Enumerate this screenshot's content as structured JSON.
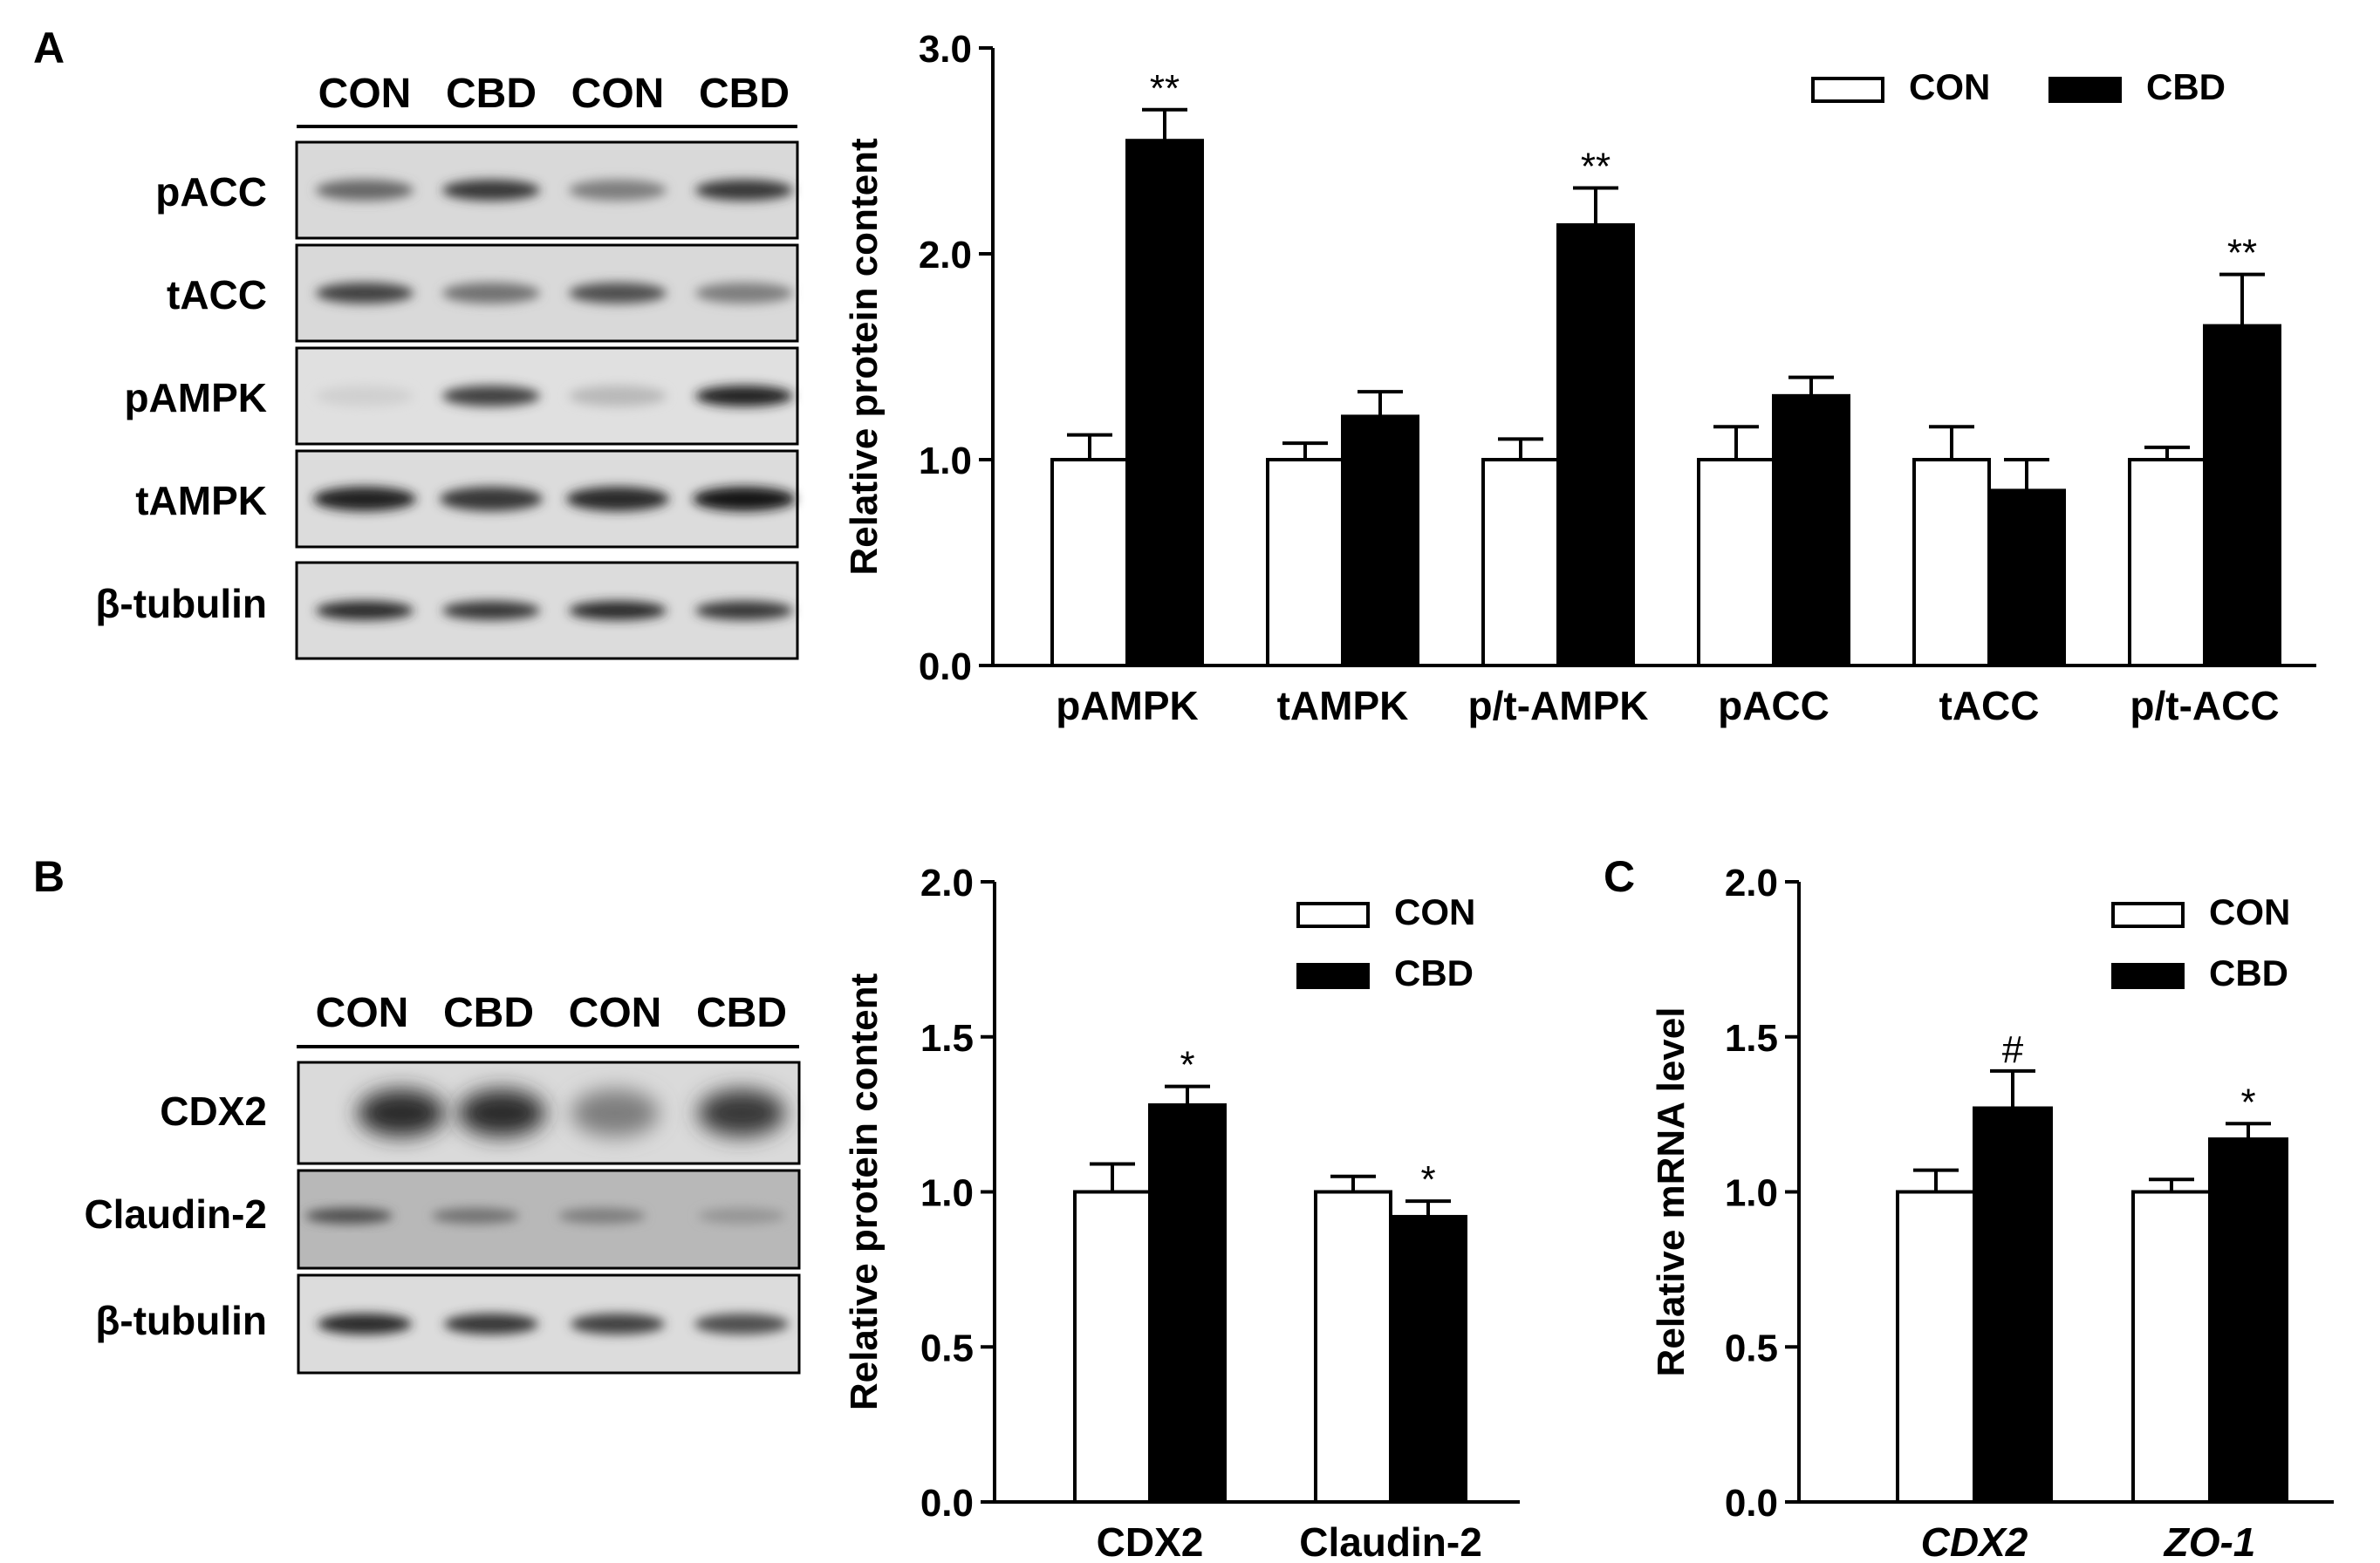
{
  "panel_labels": [
    "A",
    "B",
    "C"
  ],
  "blot_a": {
    "lanes": [
      "CON",
      "CBD",
      "CON",
      "CBD"
    ],
    "rows": [
      {
        "label": "pACC",
        "intensity": [
          0.65,
          0.85,
          0.55,
          0.85
        ]
      },
      {
        "label": "tACC",
        "intensity": [
          0.8,
          0.6,
          0.75,
          0.55
        ]
      },
      {
        "label": "pAMPK",
        "intensity": [
          0.2,
          0.8,
          0.3,
          0.95
        ]
      },
      {
        "label": "tAMPK",
        "intensity": [
          0.95,
          0.85,
          0.9,
          1.0
        ]
      },
      {
        "label": "β-tubulin",
        "intensity": [
          0.9,
          0.85,
          0.9,
          0.85
        ]
      }
    ]
  },
  "blot_b": {
    "lanes": [
      "CON",
      "CBD",
      "CON",
      "CBD"
    ],
    "rows": [
      {
        "label": "CDX2",
        "intensity": [
          0.9,
          0.9,
          0.55,
          0.85
        ]
      },
      {
        "label": "Claudin-2",
        "intensity": [
          0.75,
          0.6,
          0.55,
          0.45
        ]
      },
      {
        "label": "β-tubulin",
        "intensity": [
          0.9,
          0.85,
          0.8,
          0.75
        ]
      }
    ]
  },
  "chart_data": [
    {
      "id": "A",
      "type": "bar",
      "title": "",
      "xlabel": "",
      "ylabel": "Relative protein content",
      "ylim": [
        0,
        3.0
      ],
      "yticks": [
        "0.0",
        "1.0",
        "2.0",
        "3.0"
      ],
      "categories": [
        "pAMPK",
        "tAMPK",
        "p/t-AMPK",
        "pACC",
        "tACC",
        "p/t-ACC"
      ],
      "categories_italic": false,
      "series": [
        {
          "name": "CON",
          "color": "#ffffff",
          "values": [
            1.0,
            1.0,
            1.0,
            1.0,
            1.0,
            1.0
          ],
          "errors": [
            0.12,
            0.08,
            0.1,
            0.16,
            0.16,
            0.06
          ]
        },
        {
          "name": "CBD",
          "color": "#000000",
          "values": [
            2.55,
            1.21,
            2.14,
            1.31,
            0.85,
            1.65
          ],
          "errors": [
            0.15,
            0.12,
            0.18,
            0.09,
            0.15,
            0.25
          ]
        }
      ],
      "significance": [
        "**",
        "",
        "**",
        "",
        "",
        "**"
      ],
      "legend": "top-right"
    },
    {
      "id": "B",
      "type": "bar",
      "title": "",
      "xlabel": "",
      "ylabel": "Relative protein content",
      "ylim": [
        0,
        2.0
      ],
      "yticks": [
        "0.0",
        "0.5",
        "1.0",
        "1.5",
        "2.0"
      ],
      "categories": [
        "CDX2",
        "Claudin-2"
      ],
      "categories_italic": false,
      "series": [
        {
          "name": "CON",
          "color": "#ffffff",
          "values": [
            1.0,
            1.0
          ],
          "errors": [
            0.09,
            0.05
          ]
        },
        {
          "name": "CBD",
          "color": "#000000",
          "values": [
            1.28,
            0.92
          ],
          "errors": [
            0.06,
            0.05
          ]
        }
      ],
      "significance": [
        "*",
        "*"
      ],
      "legend": "top-right"
    },
    {
      "id": "C",
      "type": "bar",
      "title": "",
      "xlabel": "",
      "ylabel": "Relative mRNA level",
      "ylim": [
        0,
        2.0
      ],
      "yticks": [
        "0.0",
        "0.5",
        "1.0",
        "1.5",
        "2.0"
      ],
      "categories": [
        "CDX2",
        "ZO-1"
      ],
      "categories_italic": true,
      "series": [
        {
          "name": "CON",
          "color": "#ffffff",
          "values": [
            1.0,
            1.0
          ],
          "errors": [
            0.07,
            0.04
          ]
        },
        {
          "name": "CBD",
          "color": "#000000",
          "values": [
            1.27,
            1.17
          ],
          "errors": [
            0.12,
            0.05
          ]
        }
      ],
      "significance": [
        "#",
        "*"
      ],
      "legend": "top-right"
    }
  ]
}
